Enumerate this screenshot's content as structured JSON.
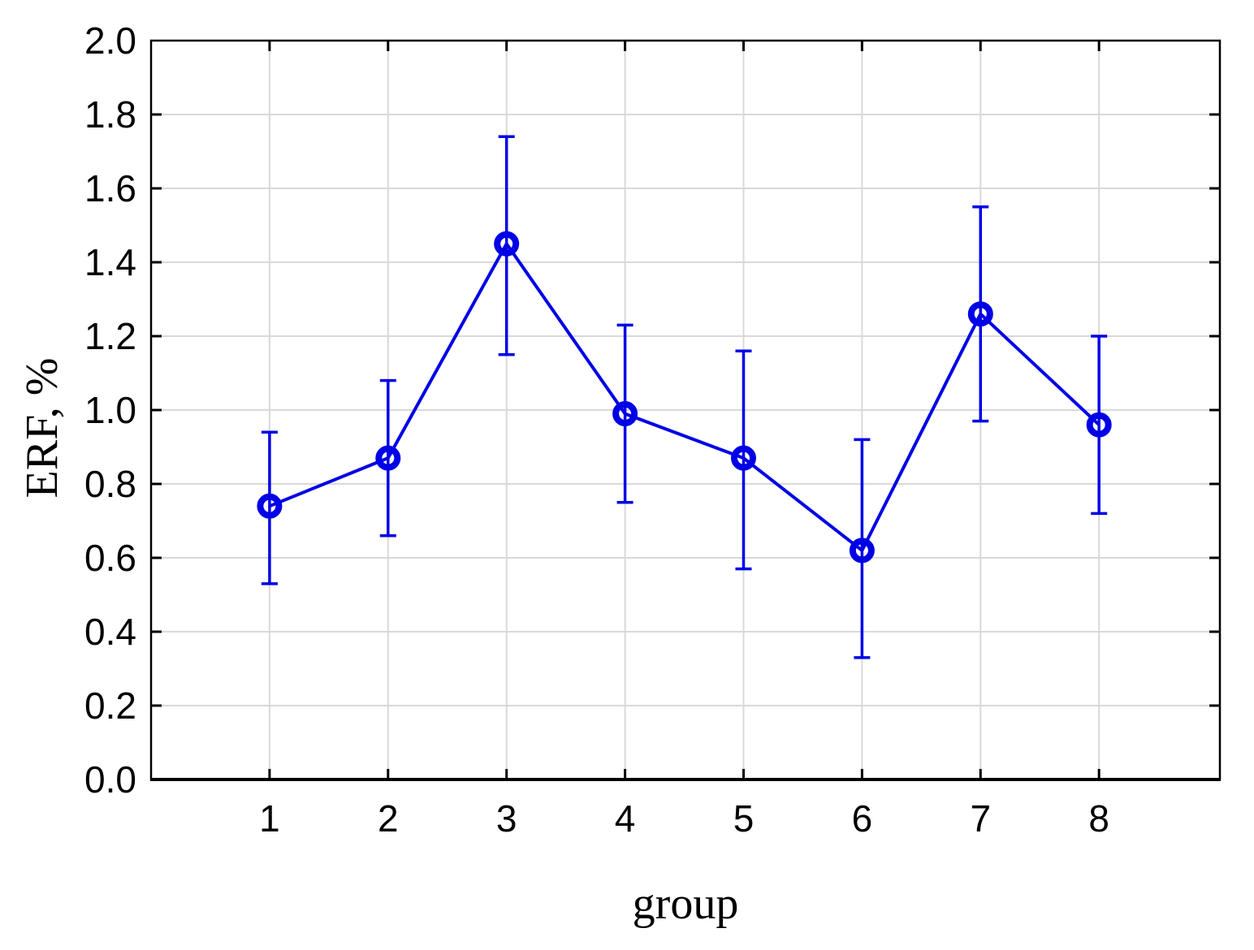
{
  "figure": {
    "background": "#ffffff"
  },
  "chart_data": {
    "type": "line",
    "title": "",
    "xlabel": "group",
    "ylabel": "ERF, %",
    "x": [
      1,
      2,
      3,
      4,
      5,
      6,
      7,
      8
    ],
    "x_tick_labels": [
      "1",
      "2",
      "3",
      "4",
      "5",
      "6",
      "7",
      "8"
    ],
    "y_tick_labels": [
      "0.0",
      "0.2",
      "0.4",
      "0.6",
      "0.8",
      "1.0",
      "1.2",
      "1.4",
      "1.6",
      "1.8",
      "2.0"
    ],
    "y_tick_values": [
      0.0,
      0.2,
      0.4,
      0.6,
      0.8,
      1.0,
      1.2,
      1.4,
      1.6,
      1.8,
      2.0
    ],
    "xlim": [
      0,
      9.02
    ],
    "ylim": [
      0.0,
      2.0
    ],
    "grid": "on",
    "legend": "none",
    "marker": "open-circle",
    "series": [
      {
        "name": "ERF",
        "values": [
          0.74,
          0.87,
          1.45,
          0.99,
          0.87,
          0.62,
          1.26,
          0.96
        ],
        "error_upper": [
          0.94,
          1.08,
          1.74,
          1.23,
          1.16,
          0.92,
          1.55,
          1.2
        ],
        "error_lower": [
          0.53,
          0.66,
          1.15,
          0.75,
          0.57,
          0.33,
          0.97,
          0.72
        ]
      }
    ],
    "colors": {
      "series": "#0000e6",
      "grid": "#d9d9d9",
      "axis": "#000000",
      "tick_label": "#000000"
    }
  }
}
